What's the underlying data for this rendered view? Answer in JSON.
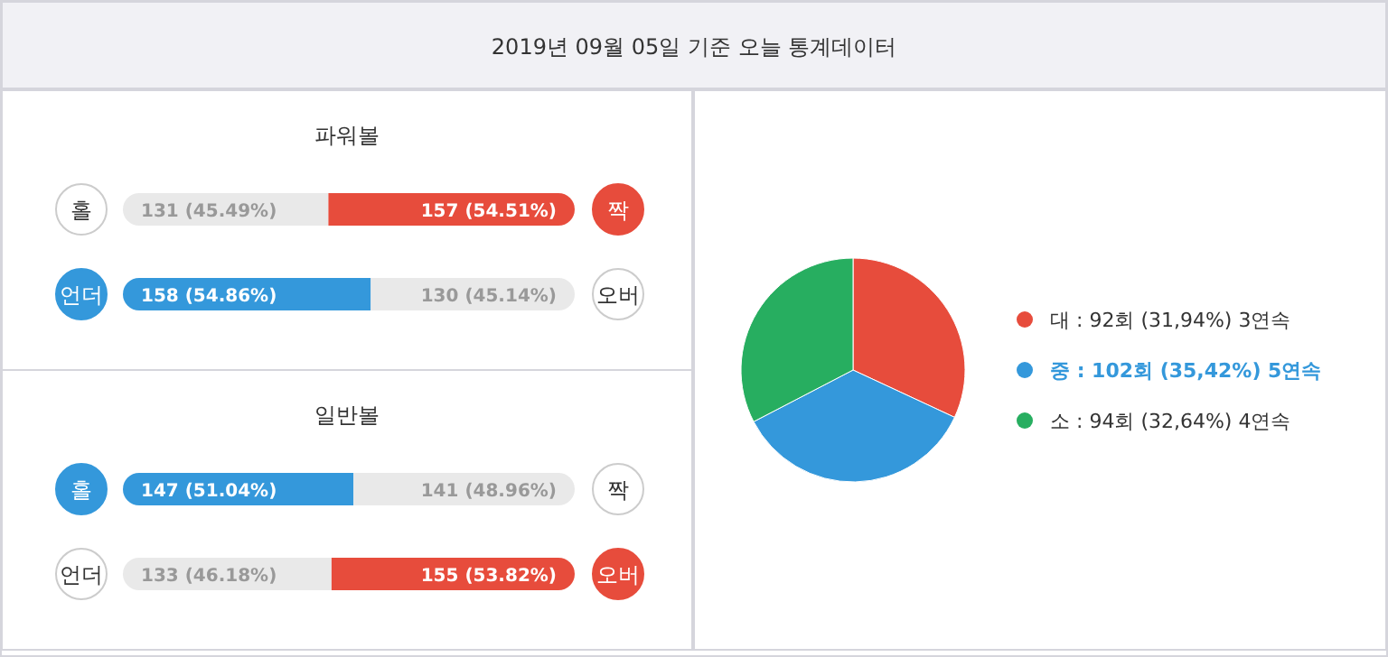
{
  "chart_data": [
    {
      "type": "other",
      "title": "2019년 09월 05일 기준 오늘 통계데이터"
    },
    {
      "type": "bar",
      "title": "파워볼",
      "orientation": "horizontal",
      "stacked": true,
      "categories": [
        "홀",
        "언더"
      ],
      "annotations": [
        "짝",
        "오버"
      ],
      "series": [
        {
          "colors": [
            "#e9e9e9",
            "#3498db"
          ],
          "values": [
            131,
            158
          ],
          "value_labels": [
            "131 (45.49%)",
            "158 (54.86%)"
          ]
        },
        {
          "colors": [
            "#e74c3c",
            "#e9e9e9"
          ],
          "values": [
            157,
            130
          ],
          "value_labels": [
            "157 (54.51%)",
            "130 (45.14%)"
          ]
        }
      ]
    },
    {
      "type": "bar",
      "title": "일반볼",
      "orientation": "horizontal",
      "stacked": true,
      "categories": [
        "홀",
        "언더"
      ],
      "annotations": [
        "짝",
        "오버"
      ],
      "series": [
        {
          "colors": [
            "#3498db",
            "#e9e9e9"
          ],
          "values": [
            147,
            133
          ],
          "value_labels": [
            "147 (51.04%)",
            "133 (46.18%)"
          ]
        },
        {
          "colors": [
            "#e9e9e9",
            "#e74c3c"
          ],
          "values": [
            141,
            155
          ],
          "value_labels": [
            "141 (48.96%)",
            "155 (53.82%)"
          ]
        }
      ]
    },
    {
      "type": "pie",
      "categories": [
        "대",
        "중",
        "소"
      ],
      "values": [
        92,
        102,
        94
      ],
      "colors": [
        "#e74c3c",
        "#3498db",
        "#27ae60"
      ],
      "value_labels": [
        "92회 (31,94%) 3연속",
        "102회 (35,42%) 5연속",
        "94회 (32,64%) 4연속"
      ],
      "legend": "right"
    }
  ]
}
